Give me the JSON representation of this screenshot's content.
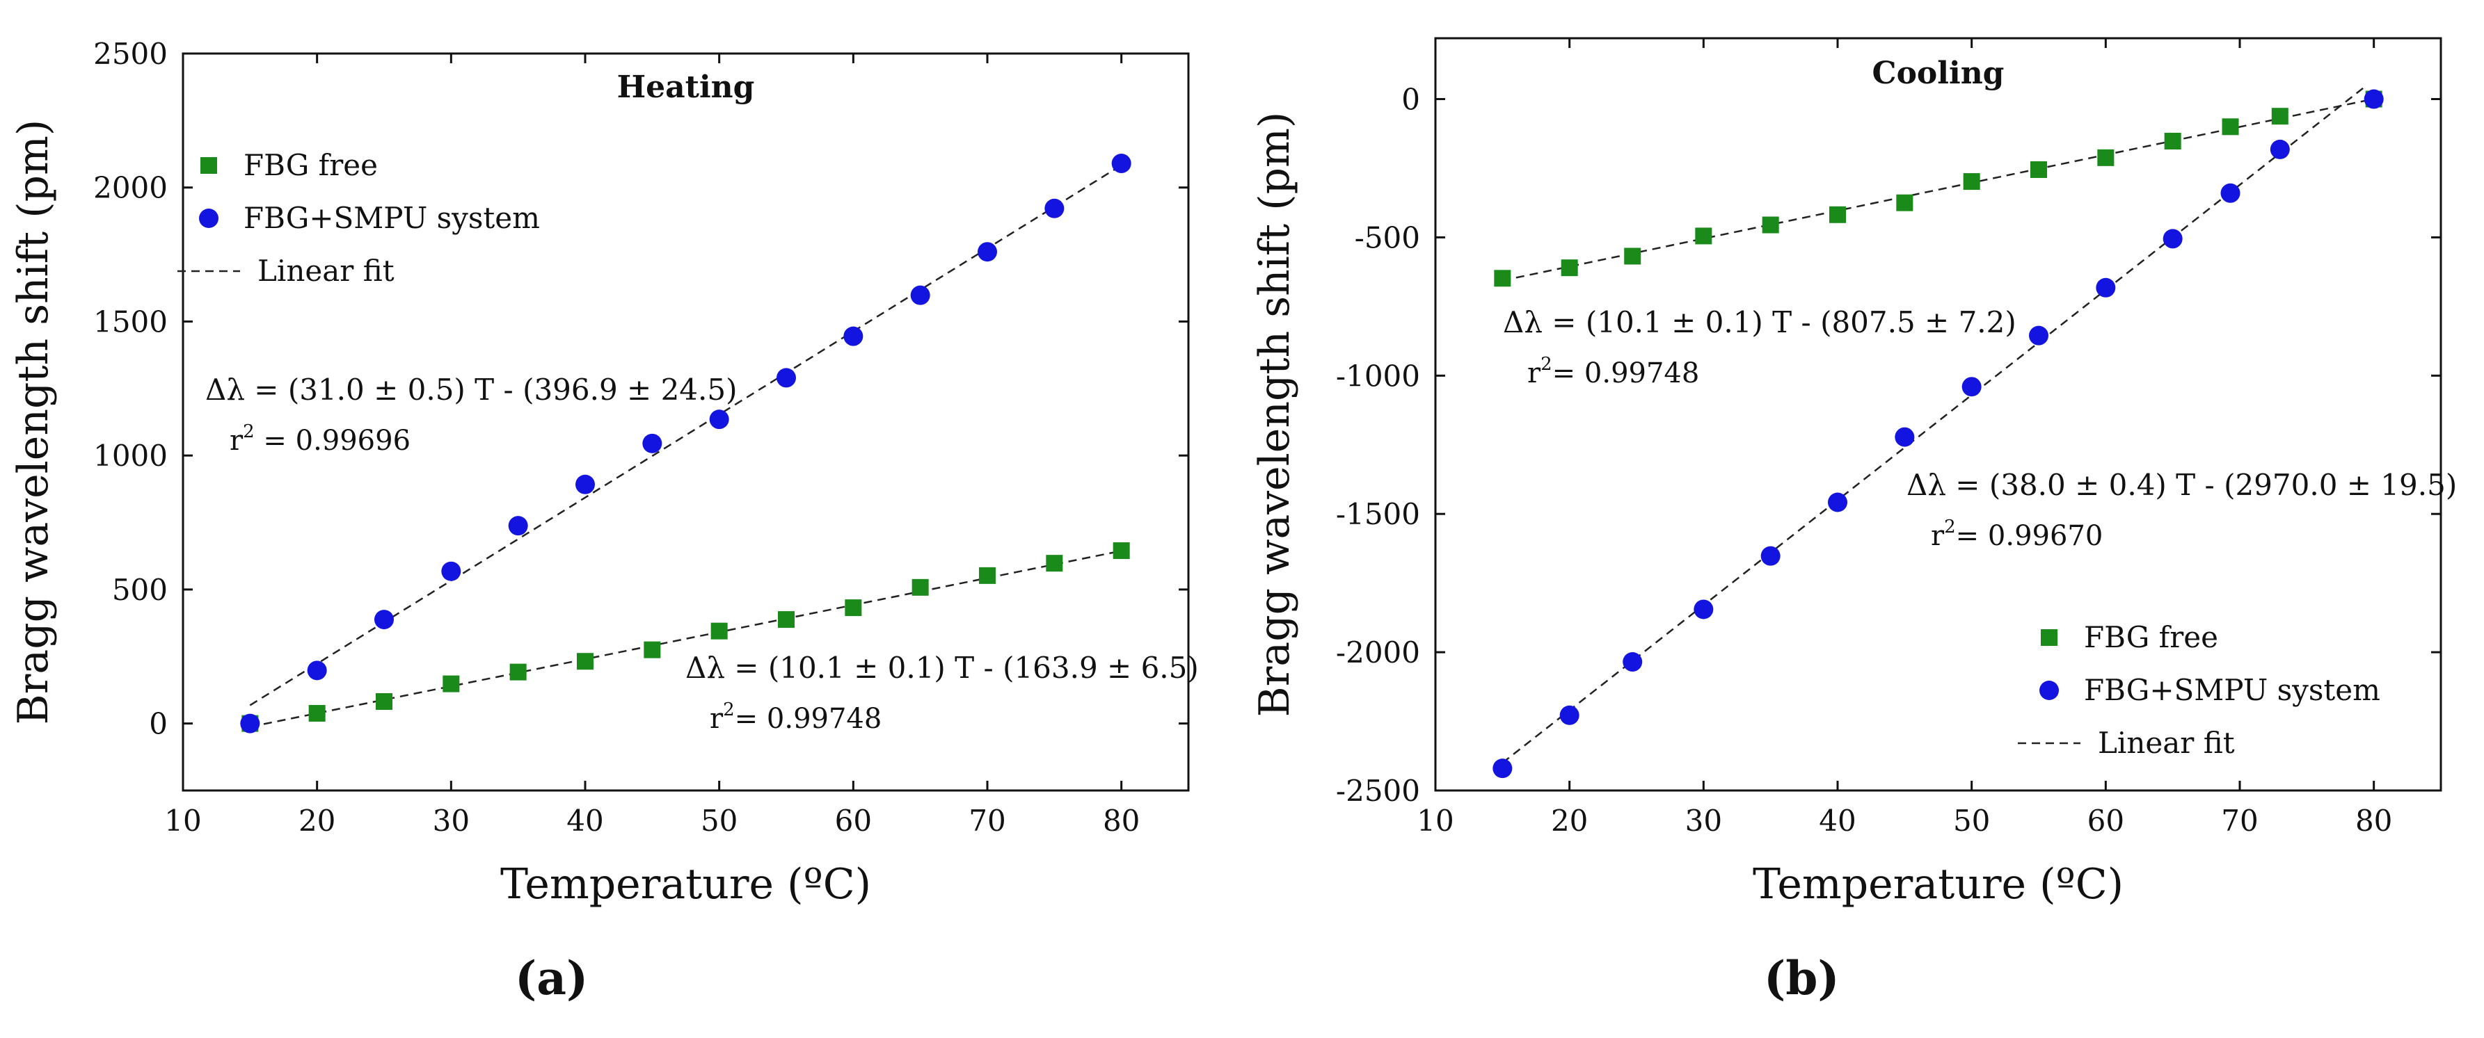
{
  "figure": {
    "panel_labels": [
      "(a)",
      "(b)"
    ]
  },
  "colors": {
    "fbg_free": "#1a8a1a",
    "fbg_smpu": "#1414e0",
    "fit_line": "#222222"
  },
  "chart_data": [
    {
      "type": "scatter",
      "title": "Heating",
      "xlabel": "Temperature (ºC)",
      "ylabel": "Bragg wavelength shift (pm)",
      "xlim": [
        10,
        85
      ],
      "ylim": [
        -250,
        2500
      ],
      "xticks": [
        10,
        20,
        30,
        40,
        50,
        60,
        70,
        80
      ],
      "yticks": [
        0,
        500,
        1000,
        1500,
        2000,
        2500
      ],
      "legend": {
        "position": "top-left",
        "entries": [
          "FBG free",
          "FBG+SMPU system",
          "Linear fit"
        ]
      },
      "series": [
        {
          "name": "FBG free",
          "marker": "square",
          "x": [
            15,
            20,
            25,
            30,
            35,
            40,
            45,
            50,
            55,
            60,
            65,
            70,
            75,
            80
          ],
          "y": [
            0,
            38,
            82,
            148,
            192,
            232,
            275,
            345,
            388,
            432,
            508,
            552,
            598,
            645
          ]
        },
        {
          "name": "FBG+SMPU system",
          "marker": "circle",
          "x": [
            15,
            20,
            25,
            30,
            35,
            40,
            45,
            50,
            55,
            60,
            65,
            70,
            75,
            80
          ],
          "y": [
            0,
            198,
            388,
            568,
            738,
            892,
            1045,
            1135,
            1290,
            1445,
            1598,
            1760,
            1922,
            2090
          ]
        }
      ],
      "fits": [
        {
          "series": "FBG+SMPU system",
          "slope": 31.0,
          "intercept": -396.9,
          "x_range": [
            15,
            80
          ]
        },
        {
          "series": "FBG free",
          "slope": 10.1,
          "intercept": -163.9,
          "x_range": [
            15,
            80
          ]
        }
      ],
      "annotations": [
        {
          "anchor": [
            12.5,
            1240
          ],
          "eq_prefix": "Δλ = ",
          "eq_body": "(31.0 ± 0.5) T - (396.9 ± 24.5)",
          "r2_prefix": "r",
          "r2_value": " = 0.99696"
        },
        {
          "anchor": [
            48,
            200
          ],
          "eq_prefix": "Δλ = ",
          "eq_body": "(10.1 ± 0.1) T - (163.9 ± 6.5)",
          "r2_prefix": "r",
          "r2_value": "= 0.99748"
        }
      ]
    },
    {
      "type": "scatter",
      "title": "Cooling",
      "xlabel": "Temperature (ºC)",
      "ylabel": "Bragg wavelength shift (pm)",
      "xlim": [
        10,
        85
      ],
      "ylim": [
        -2500,
        220
      ],
      "xticks": [
        10,
        20,
        30,
        40,
        50,
        60,
        70,
        80
      ],
      "yticks": [
        0,
        -500,
        -1000,
        -1500,
        -2000,
        -2500
      ],
      "legend": {
        "position": "bottom-right",
        "entries": [
          "FBG free",
          "FBG+SMPU system",
          "Linear fit"
        ]
      },
      "series": [
        {
          "name": "FBG free",
          "marker": "square",
          "x": [
            15,
            20,
            24.7,
            30,
            35,
            40,
            45,
            50,
            55,
            60,
            65,
            69.3,
            73,
            80
          ],
          "y": [
            -648,
            -610,
            -568,
            -495,
            -455,
            -418,
            -375,
            -298,
            -255,
            -212,
            -152,
            -100,
            -62,
            0
          ]
        },
        {
          "name": "FBG+SMPU system",
          "marker": "circle",
          "x": [
            15,
            20,
            24.7,
            30,
            35,
            40,
            45,
            50,
            55,
            60,
            65,
            69.3,
            73,
            80
          ],
          "y": [
            -2420,
            -2228,
            -2035,
            -1845,
            -1652,
            -1458,
            -1222,
            -1040,
            -855,
            -682,
            -505,
            -340,
            -182,
            0
          ]
        }
      ],
      "fits": [
        {
          "series": "FBG+SMPU system",
          "slope": 38.0,
          "intercept": -2970.0,
          "x_range": [
            15,
            79.5
          ]
        },
        {
          "series": "FBG free",
          "slope": 10.1,
          "intercept": -807.5,
          "x_range": [
            15,
            80
          ]
        }
      ],
      "annotations": [
        {
          "anchor": [
            14.5,
            -820
          ],
          "eq_prefix": "Δλ = ",
          "eq_body": "(10.1 ± 0.1) T - (807.5 ± 7.2)",
          "r2_prefix": "r",
          "r2_value": "= 0.99748"
        },
        {
          "anchor": [
            45.5,
            -1400
          ],
          "eq_prefix": "Δλ = ",
          "eq_body": "(38.0 ± 0.4) T - (2970.0 ± 19.5)",
          "r2_prefix": "r",
          "r2_value": "= 0.99670"
        }
      ]
    }
  ]
}
